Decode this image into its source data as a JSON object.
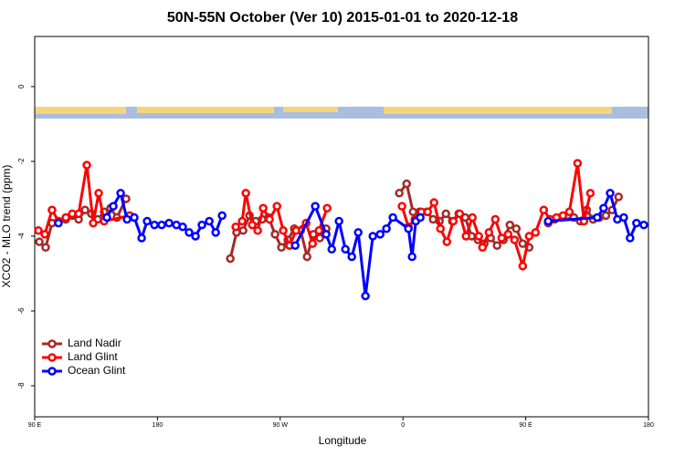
{
  "chart_data": {
    "type": "line",
    "title": "50N-55N October (Ver 10)   2015-01-01 to 2020-12-18",
    "x_label": "Longitude",
    "y_label": "XCO2 - MLO trend (ppm)",
    "xlim": [
      90,
      540
    ],
    "xticks": [
      {
        "value": 90,
        "label": "90 E"
      },
      {
        "value": 180,
        "label": "180"
      },
      {
        "value": 270,
        "label": "90 W"
      },
      {
        "value": 360,
        "label": "0"
      },
      {
        "value": 450,
        "label": "90 E"
      },
      {
        "value": 540,
        "label": "180"
      }
    ],
    "ylim": [
      -8.83,
      1.34
    ],
    "yticks": [
      0,
      -2,
      -4,
      -6,
      -8
    ],
    "legend": "lower left",
    "series": [
      {
        "name": "Land Nadir",
        "color": "#a52a2a",
        "x": [
          93.4,
          98,
          102.7,
          107.4,
          112.8,
          117.5,
          122.2,
          126.9,
          131.5,
          136.2,
          140.9,
          145.6,
          150.3,
          157,
          190,
          233.4,
          238,
          242.8,
          247.5,
          252.1,
          256.8,
          261.5,
          266.2,
          270.9,
          275.6,
          280.3,
          285,
          289.7,
          294.3,
          299,
          303.7,
          330,
          357.3,
          362.7,
          367.4,
          372.1,
          377.4,
          382.1,
          386.8,
          391.5,
          396.2,
          400.9,
          405.6,
          410.3,
          415,
          419.6,
          424.3,
          429,
          433.7,
          438.4,
          443.1,
          447.8,
          452.5,
          460,
          466.5,
          471.2,
          475.9,
          480.6,
          485.3,
          490,
          494.7,
          499.4,
          504,
          508.8,
          513.4,
          518.1
        ],
        "values": [
          -4.15,
          -4.3,
          -3.65,
          -3.6,
          -3.55,
          -3.45,
          -3.55,
          -3.3,
          -3.4,
          -3.55,
          -3.35,
          -3.25,
          -3.5,
          -3.0,
          null,
          -4.6,
          -3.9,
          -3.85,
          -3.45,
          -3.6,
          -3.55,
          -3.5,
          -3.95,
          -4.3,
          -4.1,
          -3.8,
          -3.85,
          -4.55,
          -3.95,
          -4.05,
          -3.8,
          null,
          -2.85,
          -2.6,
          -3.35,
          -3.35,
          -3.35,
          -3.55,
          -3.6,
          -3.4,
          -3.6,
          -3.4,
          -3.5,
          -4.0,
          -4.1,
          -4.2,
          -4.05,
          -4.25,
          -4.1,
          -3.7,
          -3.8,
          -4.2,
          -4.3,
          null,
          -3.65,
          -3.55,
          -3.5,
          -3.45,
          -3.5,
          -3.6,
          -3.3,
          -3.55,
          -3.5,
          -3.45,
          -3.3,
          -2.95
        ]
      },
      {
        "name": "Land Glint",
        "color": "#ff0000",
        "x": [
          92.7,
          97.4,
          102.7,
          107.4,
          112.8,
          117.5,
          122.2,
          128.2,
          132.9,
          136.9,
          140.9,
          159.7,
          190,
          237.4,
          242.1,
          244.8,
          249.5,
          253.5,
          257.5,
          262.2,
          267.6,
          272.2,
          276.9,
          281.6,
          289,
          293.7,
          298.4,
          304.4,
          330,
          359.3,
          364,
          368.7,
          373.4,
          378.1,
          382.8,
          387.5,
          392.2,
          396.9,
          401.6,
          406.2,
          410.9,
          415.6,
          418.3,
          423,
          427.7,
          432.4,
          437.1,
          441.8,
          447.8,
          452.5,
          457.2,
          463.2,
          467.9,
          472.6,
          477.3,
          482,
          488,
          492.7,
          497.4
        ],
        "values": [
          -3.85,
          -3.95,
          -3.3,
          -3.6,
          -3.5,
          -3.4,
          -3.4,
          -2.1,
          -3.65,
          -2.85,
          -3.6,
          -3.45,
          null,
          -3.75,
          -3.6,
          -2.85,
          -3.7,
          -3.85,
          -3.25,
          -3.55,
          -3.2,
          -3.85,
          -4.25,
          -3.85,
          -3.65,
          -4.2,
          -3.85,
          -3.25,
          null,
          -3.2,
          -3.75,
          -3.55,
          -3.35,
          -3.35,
          -3.1,
          -3.8,
          -4.15,
          -3.6,
          -3.4,
          -4.0,
          -3.5,
          -4.0,
          -4.3,
          -3.9,
          -3.55,
          -4.05,
          -3.95,
          -4.1,
          -4.8,
          -4.0,
          -3.9,
          -3.3,
          -3.55,
          -3.5,
          -3.45,
          -3.35,
          -2.05,
          -3.6,
          -2.85
        ]
      },
      {
        "name": "Ocean Glint",
        "color": "#0000ff",
        "x": [
          107.4,
          125,
          142.9,
          147.6,
          153,
          157.7,
          163,
          168.4,
          172.4,
          177.8,
          183.1,
          188.5,
          193.9,
          198.5,
          203.2,
          207.9,
          212.6,
          218,
          222.7,
          227.4,
          260,
          281,
          295.7,
          303.7,
          307.8,
          313.1,
          317.8,
          322.5,
          327.2,
          332.5,
          337.9,
          343.3,
          347.9,
          352.6,
          364,
          366.7,
          369.4,
          372.7,
          460,
          466.5,
          502.4,
          507.1,
          511.9,
          517.2,
          521.9,
          526.5,
          531.2,
          536.6
        ],
        "values": [
          -3.65,
          null,
          -3.5,
          -3.2,
          -2.85,
          -3.55,
          -3.5,
          -4.05,
          -3.6,
          -3.7,
          -3.7,
          -3.65,
          -3.7,
          -3.75,
          -3.9,
          -4.0,
          -3.7,
          -3.6,
          -3.9,
          -3.45,
          null,
          -4.25,
          -3.2,
          -3.95,
          -4.35,
          -3.6,
          -4.35,
          -4.55,
          -3.9,
          -5.6,
          -4.0,
          -3.95,
          -3.8,
          -3.5,
          -3.8,
          -4.55,
          -3.6,
          -3.5,
          null,
          -3.6,
          -3.5,
          -3.25,
          -2.85,
          -3.55,
          -3.5,
          -4.05,
          -3.65,
          -3.7
        ]
      }
    ]
  }
}
